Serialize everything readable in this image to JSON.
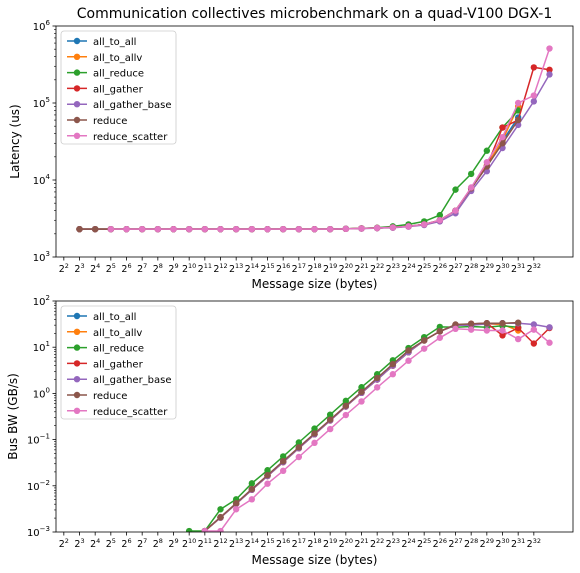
{
  "chart_data": [
    {
      "type": "line",
      "title": "Communication collectives microbenchmark on a quad-V100 DGX-1",
      "xlabel": "Message size (bytes)",
      "ylabel": "Latency (us)",
      "y_scale": "log",
      "ylim": [
        1000,
        1000000
      ],
      "y_ticks": [
        {
          "v": 1000,
          "e": "3"
        },
        {
          "v": 10000,
          "e": "4"
        },
        {
          "v": 100000,
          "e": "5"
        },
        {
          "v": 1000000,
          "e": "6"
        }
      ],
      "x_scale": "log2",
      "xlim_exp": [
        1.5,
        34.5
      ],
      "x_tick_exps": [
        "2",
        "3",
        "4",
        "5",
        "6",
        "7",
        "8",
        "9",
        "10",
        "11",
        "12",
        "13",
        "14",
        "15",
        "16",
        "17",
        "18",
        "19",
        "20",
        "21",
        "22",
        "23",
        "24",
        "25",
        "26",
        "27",
        "28",
        "29",
        "30",
        "31",
        "32"
      ],
      "grid": false,
      "legend": "upper left",
      "series": [
        {
          "name": "all_to_all",
          "color": "#1f77b4",
          "x_exp": [
            3,
            4,
            5,
            6,
            7,
            8,
            9,
            10,
            11,
            12,
            13,
            14,
            15,
            16,
            17,
            18,
            19,
            20,
            21,
            22,
            23,
            24,
            25,
            26,
            27,
            28,
            29,
            30,
            31
          ],
          "y": [
            2300,
            2300,
            2300,
            2300,
            2300,
            2300,
            2300,
            2300,
            2300,
            2300,
            2300,
            2300,
            2300,
            2300,
            2300,
            2300,
            2300,
            2320,
            2350,
            2380,
            2420,
            2500,
            2650,
            3000,
            4000,
            7800,
            15000,
            32000,
            65000
          ]
        },
        {
          "name": "all_to_allv",
          "color": "#ff7f0e",
          "x_exp": [
            3,
            4,
            5,
            6,
            7,
            8,
            9,
            10,
            11,
            12,
            13,
            14,
            15,
            16,
            17,
            18,
            19,
            20,
            21,
            22,
            23,
            24,
            25,
            26,
            27,
            28,
            29,
            30,
            31
          ],
          "y": [
            2300,
            2300,
            2300,
            2300,
            2300,
            2300,
            2300,
            2300,
            2300,
            2300,
            2300,
            2300,
            2300,
            2300,
            2300,
            2300,
            2300,
            2320,
            2350,
            2380,
            2420,
            2500,
            2650,
            3000,
            4000,
            7800,
            15500,
            33000,
            90000
          ]
        },
        {
          "name": "all_reduce",
          "color": "#2ca02c",
          "x_exp": [
            3,
            4,
            5,
            6,
            7,
            8,
            9,
            10,
            11,
            12,
            13,
            14,
            15,
            16,
            17,
            18,
            19,
            20,
            21,
            22,
            23,
            24,
            25,
            26,
            27,
            28,
            29,
            30,
            31
          ],
          "y": [
            2300,
            2300,
            2300,
            2300,
            2300,
            2300,
            2300,
            2300,
            2300,
            2300,
            2300,
            2300,
            2300,
            2300,
            2300,
            2300,
            2300,
            2330,
            2360,
            2400,
            2500,
            2650,
            2900,
            3500,
            7500,
            12000,
            24000,
            48000,
            80000
          ]
        },
        {
          "name": "all_gather",
          "color": "#d62728",
          "x_exp": [
            3,
            4,
            5,
            6,
            7,
            8,
            9,
            10,
            11,
            12,
            13,
            14,
            15,
            16,
            17,
            18,
            19,
            20,
            21,
            22,
            23,
            24,
            25,
            26,
            27,
            28,
            29,
            30,
            31,
            32,
            33
          ],
          "y": [
            2300,
            2300,
            2300,
            2300,
            2300,
            2300,
            2300,
            2300,
            2300,
            2300,
            2300,
            2300,
            2300,
            2300,
            2300,
            2300,
            2300,
            2320,
            2350,
            2380,
            2420,
            2500,
            2650,
            3000,
            4000,
            7800,
            15000,
            48000,
            60000,
            290000,
            270000
          ]
        },
        {
          "name": "all_gather_base",
          "color": "#9467bd",
          "x_exp": [
            3,
            4,
            5,
            6,
            7,
            8,
            9,
            10,
            11,
            12,
            13,
            14,
            15,
            16,
            17,
            18,
            19,
            20,
            21,
            22,
            23,
            24,
            25,
            26,
            27,
            28,
            29,
            30,
            31,
            32,
            33
          ],
          "y": [
            2300,
            2300,
            2300,
            2300,
            2300,
            2300,
            2300,
            2300,
            2300,
            2300,
            2300,
            2300,
            2300,
            2300,
            2300,
            2300,
            2300,
            2320,
            2340,
            2370,
            2400,
            2480,
            2600,
            2900,
            3700,
            7200,
            13000,
            26000,
            52000,
            105000,
            235000
          ]
        },
        {
          "name": "reduce",
          "color": "#8c564b",
          "x_exp": [
            3,
            4,
            5,
            6,
            7,
            8,
            9,
            10,
            11,
            12,
            13,
            14,
            15,
            16,
            17,
            18,
            19,
            20,
            21,
            22,
            23,
            24,
            25,
            26,
            27,
            28,
            29,
            30,
            31
          ],
          "y": [
            2300,
            2300,
            2300,
            2300,
            2300,
            2300,
            2300,
            2300,
            2300,
            2300,
            2300,
            2300,
            2300,
            2300,
            2300,
            2300,
            2300,
            2320,
            2350,
            2380,
            2420,
            2500,
            2650,
            3000,
            4000,
            7800,
            15000,
            30000,
            60000
          ]
        },
        {
          "name": "reduce_scatter",
          "color": "#e377c2",
          "x_exp": [
            5,
            6,
            7,
            8,
            9,
            10,
            11,
            12,
            13,
            14,
            15,
            16,
            17,
            18,
            19,
            20,
            21,
            22,
            23,
            24,
            25,
            26,
            27,
            28,
            29,
            30,
            31,
            32,
            33
          ],
          "y": [
            2300,
            2300,
            2300,
            2300,
            2300,
            2300,
            2300,
            2300,
            2300,
            2300,
            2300,
            2300,
            2300,
            2300,
            2300,
            2320,
            2350,
            2380,
            2420,
            2500,
            2650,
            3000,
            4000,
            8000,
            17000,
            36000,
            100000,
            125000,
            510000
          ]
        }
      ]
    },
    {
      "type": "line",
      "title": "",
      "xlabel": "Message size (bytes)",
      "ylabel": "Bus BW (GB/s)",
      "y_scale": "log",
      "ylim": [
        0.001,
        100
      ],
      "y_ticks": [
        {
          "v": 0.001,
          "e": "−3"
        },
        {
          "v": 0.01,
          "e": "−2"
        },
        {
          "v": 0.1,
          "e": "−1"
        },
        {
          "v": 1,
          "e": "0"
        },
        {
          "v": 10,
          "e": "1"
        },
        {
          "v": 100,
          "e": "2"
        }
      ],
      "x_scale": "log2",
      "xlim_exp": [
        1.5,
        34.5
      ],
      "x_tick_exps": [
        "2",
        "3",
        "4",
        "5",
        "6",
        "7",
        "8",
        "9",
        "10",
        "11",
        "12",
        "13",
        "14",
        "15",
        "16",
        "17",
        "18",
        "19",
        "20",
        "21",
        "22",
        "23",
        "24",
        "25",
        "26",
        "27",
        "28",
        "29",
        "30",
        "31",
        "32"
      ],
      "grid": false,
      "legend": "upper left",
      "series": [
        {
          "name": "all_to_all",
          "color": "#1f77b4",
          "x_exp": [
            11,
            12,
            13,
            14,
            15,
            16,
            17,
            18,
            19,
            20,
            21,
            22,
            23,
            24,
            25,
            26,
            27,
            28,
            29,
            30,
            31
          ],
          "y": [
            0.00105,
            0.00205,
            0.0041,
            0.0082,
            0.0163,
            0.0326,
            0.065,
            0.13,
            0.26,
            0.52,
            1.03,
            2.0,
            4.0,
            7.8,
            14,
            22,
            30,
            32,
            33,
            33,
            33
          ]
        },
        {
          "name": "all_to_allv",
          "color": "#ff7f0e",
          "x_exp": [
            11,
            12,
            13,
            14,
            15,
            16,
            17,
            18,
            19,
            20,
            21,
            22,
            23,
            24,
            25,
            26,
            27,
            28,
            29,
            30,
            31
          ],
          "y": [
            0.00105,
            0.00205,
            0.0041,
            0.0082,
            0.0163,
            0.0326,
            0.065,
            0.13,
            0.26,
            0.52,
            1.03,
            2.0,
            4.0,
            7.8,
            14,
            22,
            30,
            32,
            32,
            31,
            23
          ]
        },
        {
          "name": "all_reduce",
          "color": "#2ca02c",
          "x_exp": [
            10,
            11,
            12,
            13,
            14,
            15,
            16,
            17,
            18,
            19,
            20,
            21,
            22,
            23,
            24,
            25,
            26,
            27,
            28,
            29,
            30,
            31
          ],
          "y": [
            0.00105,
            0.00105,
            0.0031,
            0.0051,
            0.0113,
            0.0217,
            0.0433,
            0.0866,
            0.173,
            0.346,
            0.69,
            1.36,
            2.6,
            5.2,
            9.6,
            16.5,
            27.5,
            27,
            28,
            27,
            29,
            27
          ]
        },
        {
          "name": "all_gather",
          "color": "#d62728",
          "x_exp": [
            11,
            12,
            13,
            14,
            15,
            16,
            17,
            18,
            19,
            20,
            21,
            22,
            23,
            24,
            25,
            26,
            27,
            28,
            29,
            30,
            31,
            32,
            33
          ],
          "y": [
            0.00105,
            0.00205,
            0.0041,
            0.0082,
            0.0163,
            0.0326,
            0.065,
            0.13,
            0.26,
            0.52,
            1.03,
            2.0,
            4.0,
            7.8,
            14,
            22,
            30,
            32,
            33,
            18,
            26,
            12,
            26
          ]
        },
        {
          "name": "all_gather_base",
          "color": "#9467bd",
          "x_exp": [
            11,
            12,
            13,
            14,
            15,
            16,
            17,
            18,
            19,
            20,
            21,
            22,
            23,
            24,
            25,
            26,
            27,
            28,
            29,
            30,
            31,
            32,
            33
          ],
          "y": [
            0.00105,
            0.00205,
            0.0041,
            0.0082,
            0.0163,
            0.0326,
            0.065,
            0.13,
            0.26,
            0.52,
            1.03,
            2.0,
            4.0,
            7.8,
            14,
            22,
            30,
            30,
            32,
            33,
            33,
            31,
            27
          ]
        },
        {
          "name": "reduce",
          "color": "#8c564b",
          "x_exp": [
            11,
            12,
            13,
            14,
            15,
            16,
            17,
            18,
            19,
            20,
            21,
            22,
            23,
            24,
            25,
            26,
            27,
            28,
            29,
            30,
            31
          ],
          "y": [
            0.00105,
            0.0021,
            0.0042,
            0.0085,
            0.017,
            0.034,
            0.068,
            0.136,
            0.27,
            0.54,
            1.08,
            2.15,
            4.3,
            8.5,
            14,
            22,
            31,
            32,
            33,
            33,
            34
          ]
        },
        {
          "name": "reduce_scatter",
          "color": "#e377c2",
          "x_exp": [
            11,
            12,
            13,
            14,
            15,
            16,
            17,
            18,
            19,
            20,
            21,
            22,
            23,
            24,
            25,
            26,
            27,
            28,
            29,
            30,
            31,
            32,
            33
          ],
          "y": [
            0.00105,
            0.00105,
            0.0031,
            0.0051,
            0.0111,
            0.0211,
            0.042,
            0.085,
            0.169,
            0.34,
            0.67,
            1.35,
            2.6,
            5.1,
            9.3,
            16,
            25,
            24,
            23,
            23,
            15,
            24,
            12.5
          ]
        }
      ]
    }
  ]
}
